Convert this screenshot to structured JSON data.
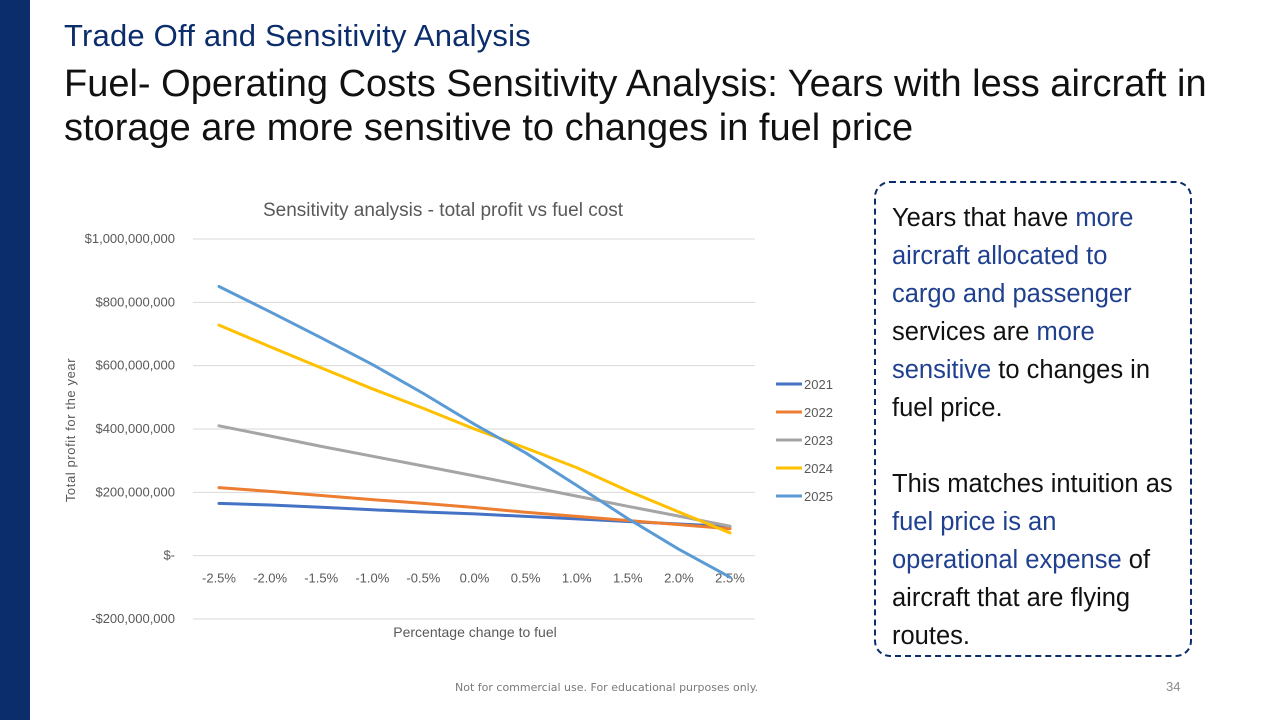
{
  "slide": {
    "section_title": "Trade Off and Sensitivity Analysis",
    "headline": "Fuel- Operating Costs Sensitivity Analysis: Years with less aircraft in storage are more sensitive to changes in fuel price",
    "footer": "Not for commercial use. For educational purposes only.",
    "page_number": "34",
    "accent_color": "#0b2d6b"
  },
  "callout": {
    "p1": {
      "t1": "Years that have ",
      "h1": "more aircraft allocated to cargo and passenger",
      "t2": " services are ",
      "h2": "more sensitive",
      "t3": " to changes in fuel price."
    },
    "p2": {
      "t1": "This matches intuition as ",
      "h1": "fuel price is an operational expense",
      "t2": " of aircraft that are flying routes."
    }
  },
  "chart_data": {
    "type": "line",
    "title": "Sensitivity analysis - total profit vs fuel cost",
    "xlabel": "Percentage change to fuel",
    "ylabel": "Total profit for the year",
    "categories": [
      "-2.5%",
      "-2.0%",
      "-1.5%",
      "-1.0%",
      "-0.5%",
      "0.0%",
      "0.5%",
      "1.0%",
      "1.5%",
      "2.0%",
      "2.5%"
    ],
    "ylim": [
      -200000000,
      1000000000
    ],
    "yticks": [
      {
        "value": 1000000000,
        "label": "$1,000,000,000"
      },
      {
        "value": 800000000,
        "label": "$800,000,000"
      },
      {
        "value": 600000000,
        "label": "$600,000,000"
      },
      {
        "value": 400000000,
        "label": "$400,000,000"
      },
      {
        "value": 200000000,
        "label": "$200,000,000"
      },
      {
        "value": 0,
        "label": "$-"
      },
      {
        "value": -200000000,
        "label": "-$200,000,000"
      }
    ],
    "grid": true,
    "legend_position": "right",
    "series": [
      {
        "name": "2021",
        "color": "#4472c4",
        "values": [
          165000000,
          160000000,
          153000000,
          145000000,
          138000000,
          132000000,
          124000000,
          116000000,
          108000000,
          100000000,
          92000000
        ]
      },
      {
        "name": "2022",
        "color": "#ed7d31",
        "values": [
          215000000,
          203000000,
          190000000,
          177000000,
          165000000,
          152000000,
          137000000,
          124000000,
          111000000,
          98000000,
          85000000
        ]
      },
      {
        "name": "2023",
        "color": "#a5a5a5",
        "values": [
          410000000,
          378000000,
          345000000,
          314000000,
          283000000,
          252000000,
          220000000,
          188000000,
          156000000,
          125000000,
          93000000
        ]
      },
      {
        "name": "2024",
        "color": "#ffc000",
        "values": [
          728000000,
          660000000,
          593000000,
          527000000,
          465000000,
          400000000,
          340000000,
          278000000,
          205000000,
          138000000,
          72000000
        ]
      },
      {
        "name": "2025",
        "color": "#5b9bd5",
        "values": [
          850000000,
          770000000,
          688000000,
          604000000,
          512000000,
          415000000,
          325000000,
          222000000,
          117000000,
          20000000,
          -68000000
        ]
      }
    ]
  }
}
